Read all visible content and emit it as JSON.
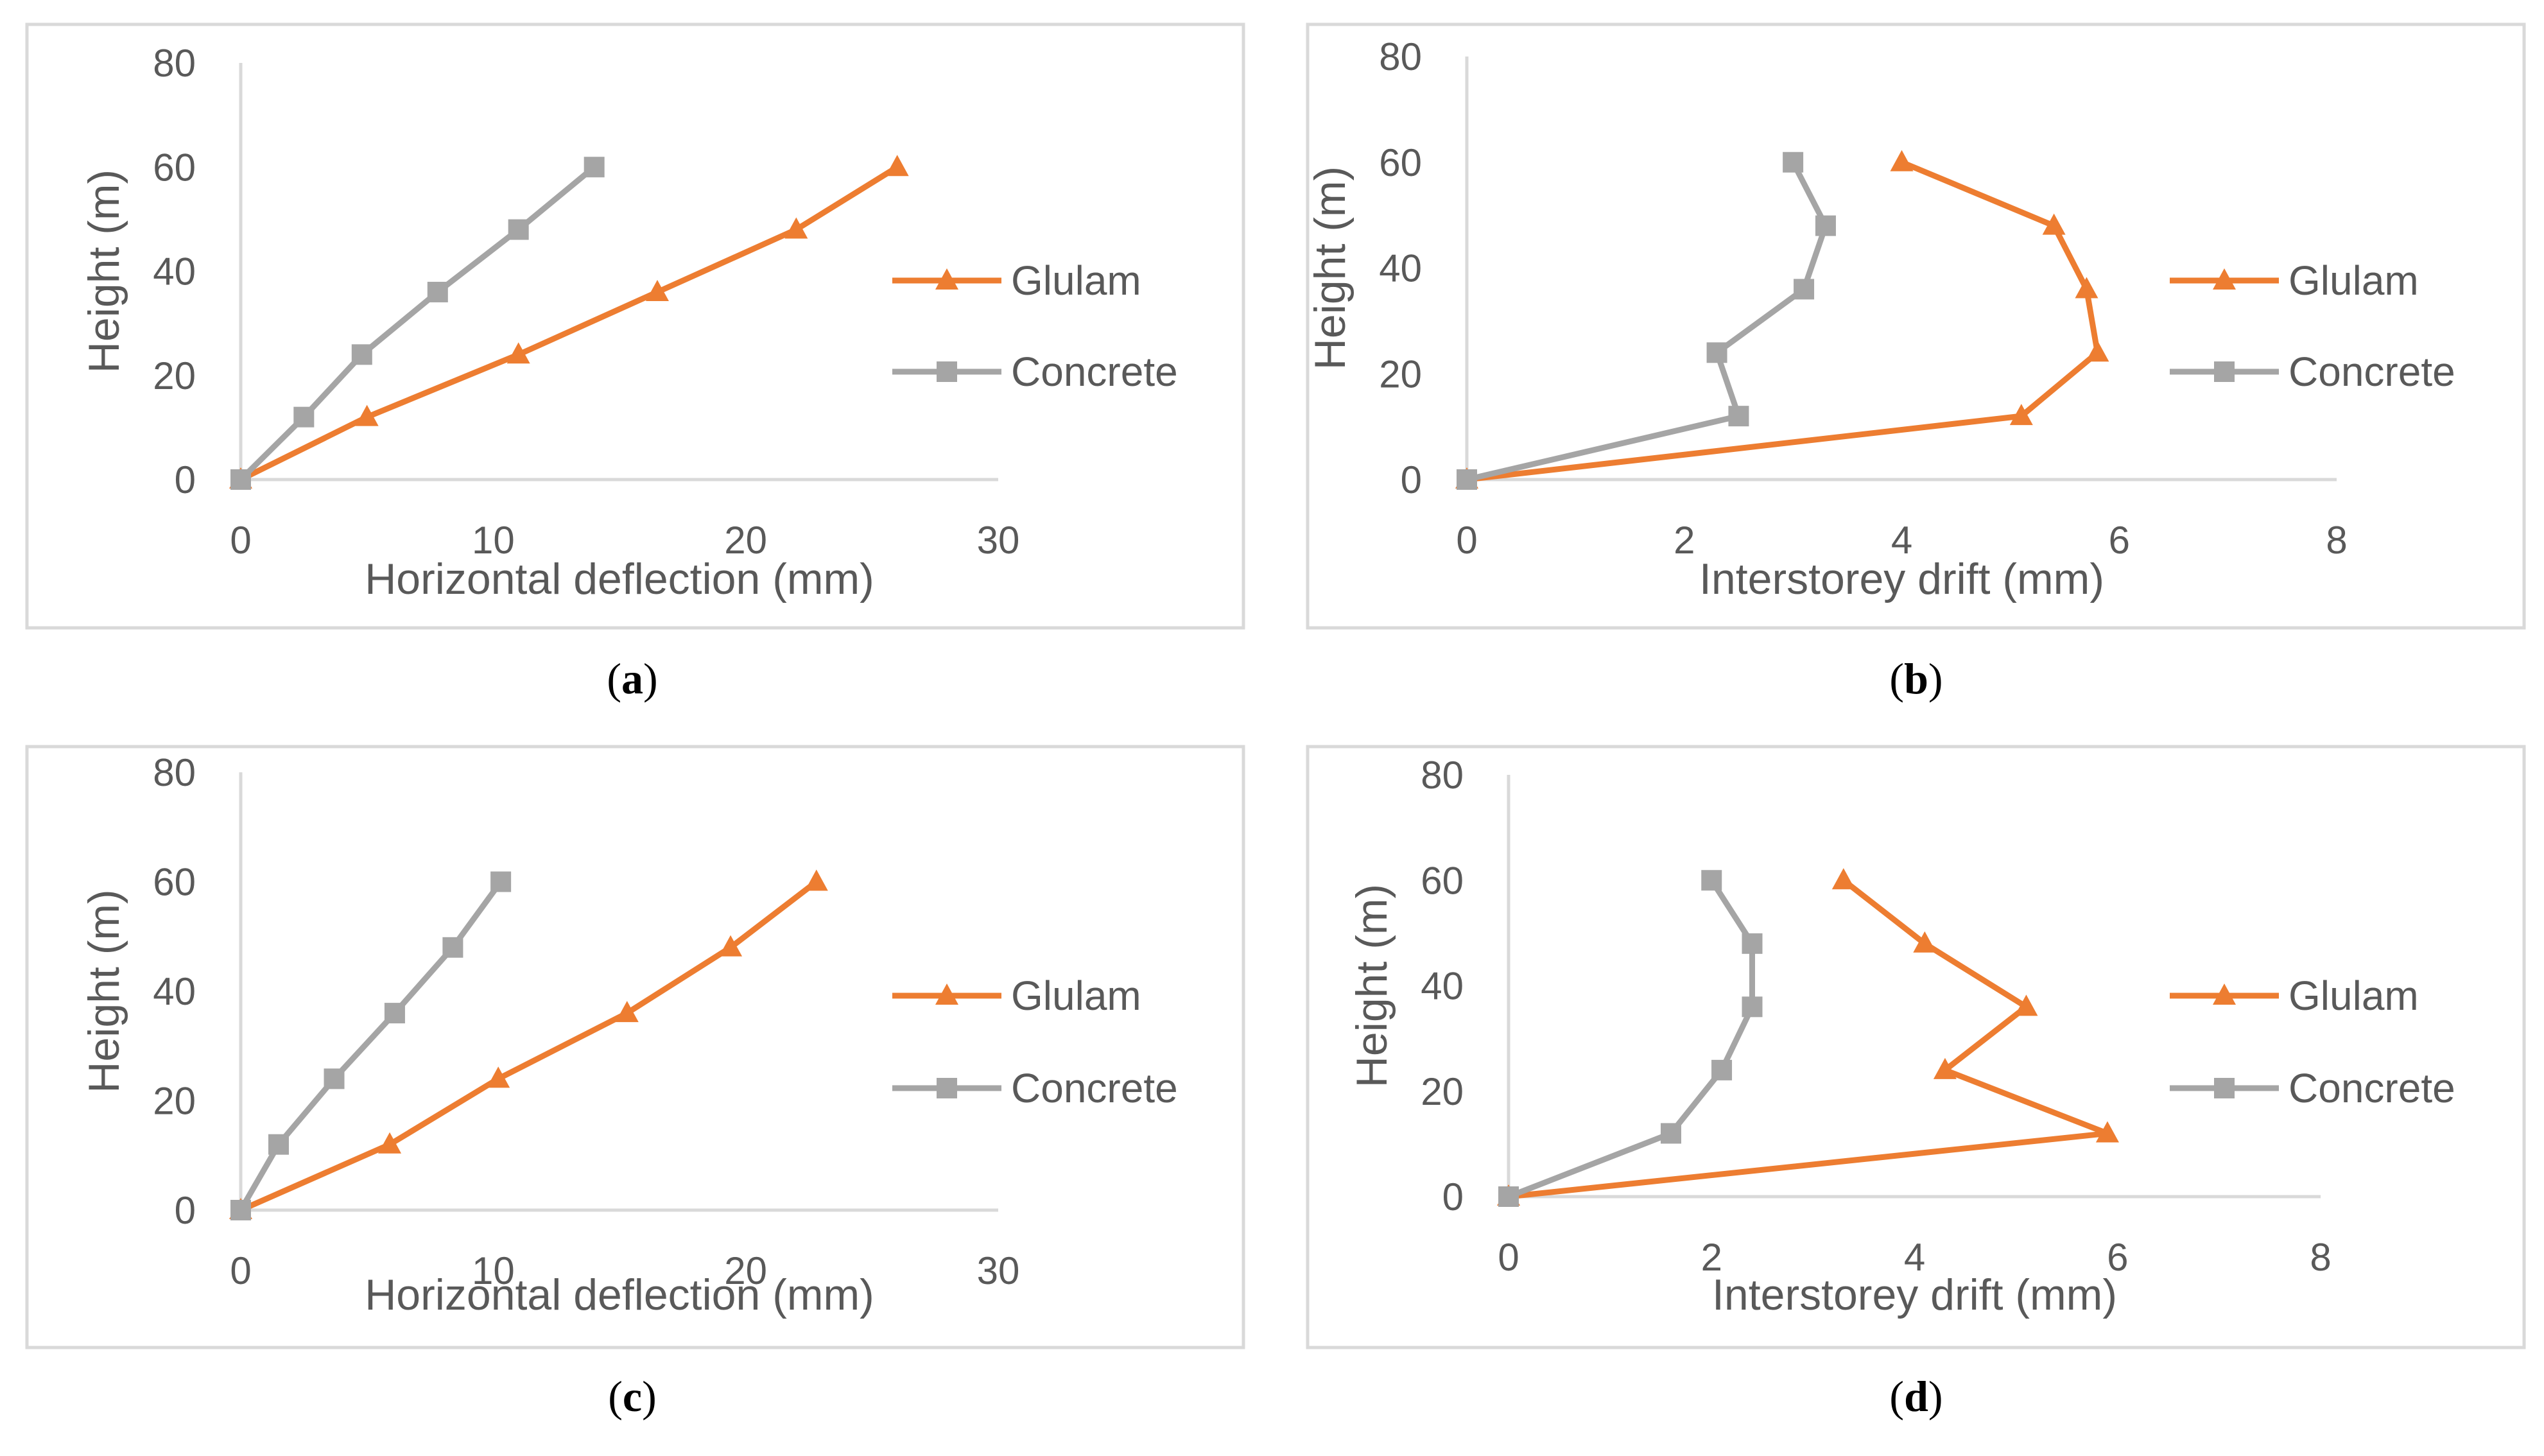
{
  "colors": {
    "glulam": "#ed7d31",
    "concrete": "#a5a5a5"
  },
  "chart_data": [
    {
      "id": "a",
      "type": "line",
      "caption": "a",
      "xlabel": "Horizontal deflection (mm)",
      "ylabel": "Height (m)",
      "xlim": [
        0,
        30
      ],
      "xticks": [
        0,
        10,
        20,
        30
      ],
      "ylim": [
        0,
        80
      ],
      "yticks": [
        0,
        20,
        40,
        60,
        80
      ],
      "legend_position": "right",
      "series": [
        {
          "name": "Glulam",
          "marker": "triangle",
          "x": [
            0,
            5,
            11,
            16.5,
            22,
            26
          ],
          "y": [
            0,
            12,
            24,
            36,
            48,
            60
          ]
        },
        {
          "name": "Concrete",
          "marker": "square",
          "x": [
            0,
            2.5,
            4.8,
            7.8,
            11,
            14
          ],
          "y": [
            0,
            12,
            24,
            36,
            48,
            60
          ]
        }
      ]
    },
    {
      "id": "b",
      "type": "line",
      "caption": "b",
      "xlabel": "Interstorey drift (mm)",
      "ylabel": "Height (m)",
      "xlim": [
        0,
        8
      ],
      "xticks": [
        0,
        2,
        4,
        6,
        8
      ],
      "ylim": [
        0,
        80
      ],
      "yticks": [
        0,
        20,
        40,
        60,
        80
      ],
      "legend_position": "right",
      "series": [
        {
          "name": "Glulam",
          "marker": "triangle",
          "x": [
            0,
            5.1,
            5.8,
            5.7,
            5.4,
            4.0
          ],
          "y": [
            0,
            12,
            24,
            36,
            48,
            60
          ]
        },
        {
          "name": "Concrete",
          "marker": "square",
          "x": [
            0,
            2.5,
            2.3,
            3.1,
            3.3,
            3.0
          ],
          "y": [
            0,
            12,
            24,
            36,
            48,
            60
          ]
        }
      ]
    },
    {
      "id": "c",
      "type": "line",
      "caption": "c",
      "xlabel": "Horizontal deflection (mm)",
      "ylabel": "Height (m)",
      "xlim": [
        0,
        30
      ],
      "xticks": [
        0,
        10,
        20,
        30
      ],
      "ylim": [
        0,
        80
      ],
      "yticks": [
        0,
        20,
        40,
        60,
        80
      ],
      "legend_position": "right",
      "series": [
        {
          "name": "Glulam",
          "marker": "triangle",
          "x": [
            0,
            5.9,
            10.2,
            15.3,
            19.4,
            22.8
          ],
          "y": [
            0,
            12,
            24,
            36,
            48,
            60
          ]
        },
        {
          "name": "Concrete",
          "marker": "square",
          "x": [
            0,
            1.5,
            3.7,
            6.1,
            8.4,
            10.3
          ],
          "y": [
            0,
            12,
            24,
            36,
            48,
            60
          ]
        }
      ]
    },
    {
      "id": "d",
      "type": "line",
      "caption": "d",
      "xlabel": "Interstorey drift (mm)",
      "ylabel": "Height (m)",
      "xlim": [
        0,
        8
      ],
      "xticks": [
        0,
        2,
        4,
        6,
        8
      ],
      "ylim": [
        0,
        80
      ],
      "yticks": [
        0,
        20,
        40,
        60,
        80
      ],
      "legend_position": "right",
      "series": [
        {
          "name": "Glulam",
          "marker": "triangle",
          "x": [
            0,
            5.9,
            4.3,
            5.1,
            4.1,
            3.3
          ],
          "y": [
            0,
            12,
            24,
            36,
            48,
            60
          ]
        },
        {
          "name": "Concrete",
          "marker": "square",
          "x": [
            0,
            1.6,
            2.1,
            2.4,
            2.4,
            2.0
          ],
          "y": [
            0,
            12,
            24,
            36,
            48,
            60
          ]
        }
      ]
    }
  ]
}
